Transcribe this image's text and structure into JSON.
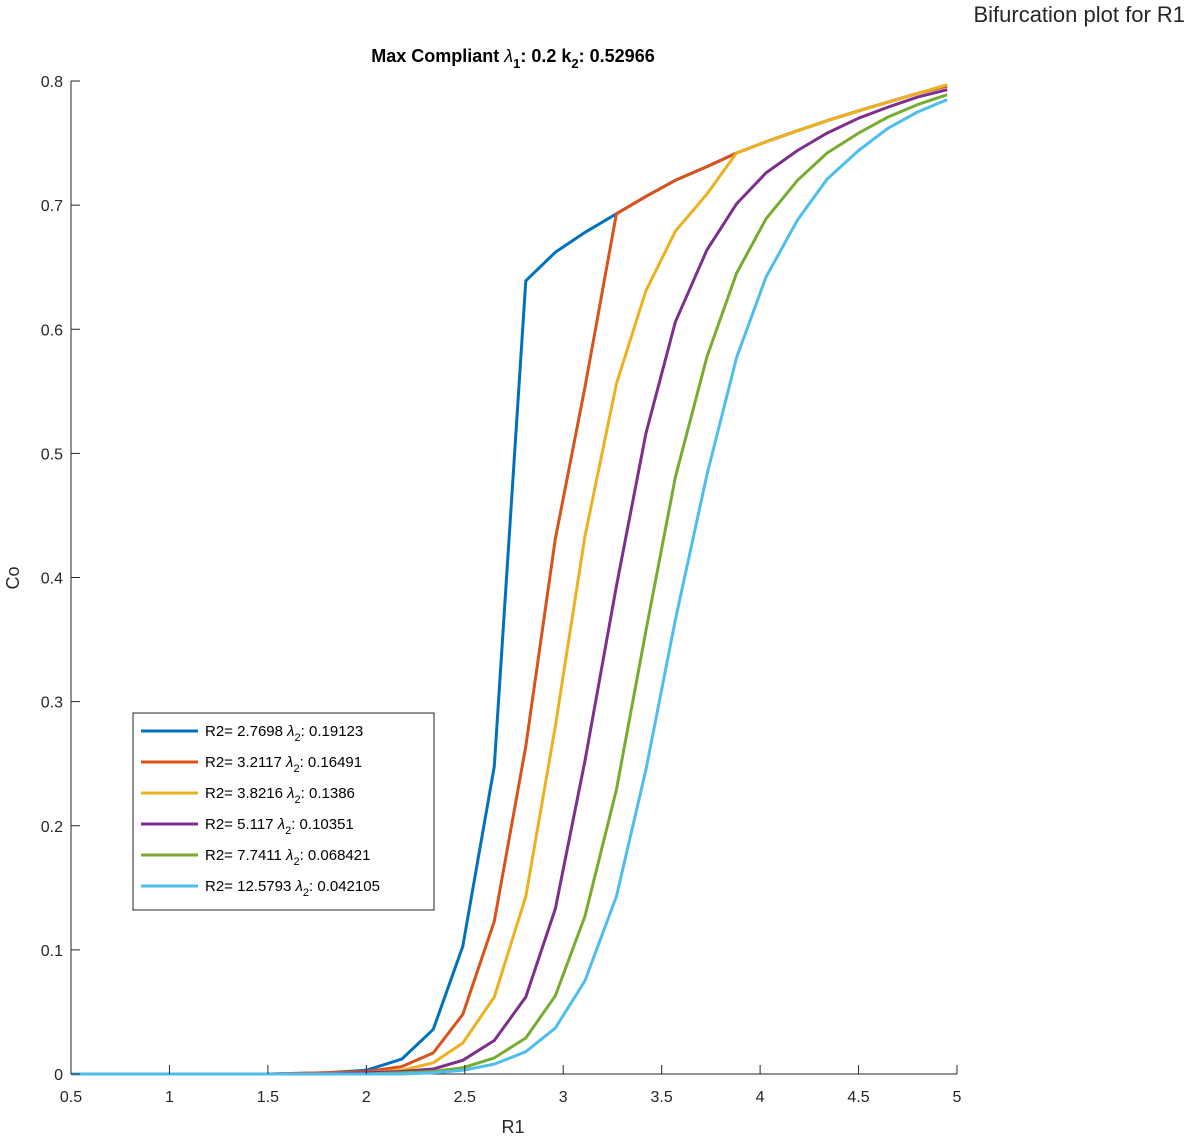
{
  "window_title": "Bifurcation plot for R1",
  "chart_data": {
    "type": "line",
    "title": {
      "prefix": "Max Compliant ",
      "lambda_sub": "1",
      "mid": ": 0.2 k",
      "k_sub": "2",
      "suffix": ": 0.52966"
    },
    "xlabel": "R1",
    "ylabel": "Co",
    "xlim": [
      0.5,
      5
    ],
    "ylim": [
      0,
      0.8
    ],
    "xticks": [
      0.5,
      1,
      1.5,
      2,
      2.5,
      3,
      3.5,
      4,
      4.5,
      5
    ],
    "xtick_labels": [
      "0.5",
      "1",
      "1.5",
      "2",
      "2.5",
      "3",
      "3.5",
      "4",
      "4.5",
      "5"
    ],
    "yticks": [
      0,
      0.1,
      0.2,
      0.3,
      0.4,
      0.5,
      0.6,
      0.7,
      0.8
    ],
    "ytick_labels": [
      "0",
      "0.1",
      "0.2",
      "0.3",
      "0.4",
      "0.5",
      "0.6",
      "0.7",
      "0.8"
    ],
    "grid": false,
    "legend_position": "lower-left",
    "series": [
      {
        "name": "R2= 2.7698 λ2: 0.19123",
        "label_pre": "R2= 2.7698 ",
        "label_sub": "2",
        "label_post": ": 0.19123",
        "color": "#0072BD",
        "points": [
          [
            0.5,
            0
          ],
          [
            1.5,
            0
          ],
          [
            1.8,
            0.001
          ],
          [
            2.0,
            0.003
          ],
          [
            2.18,
            0.012
          ],
          [
            2.34,
            0.036
          ],
          [
            2.49,
            0.103
          ],
          [
            2.65,
            0.248
          ],
          [
            2.81,
            0.639
          ],
          [
            2.96,
            0.662
          ],
          [
            3.11,
            0.678
          ],
          [
            3.27,
            0.693
          ],
          [
            3.42,
            0.707
          ],
          [
            3.57,
            0.72
          ],
          [
            3.73,
            0.731
          ],
          [
            3.88,
            0.742
          ],
          [
            4.03,
            0.751
          ],
          [
            4.19,
            0.76
          ],
          [
            4.34,
            0.768
          ],
          [
            4.5,
            0.776
          ],
          [
            4.65,
            0.783
          ],
          [
            4.8,
            0.79
          ],
          [
            4.95,
            0.796
          ]
        ]
      },
      {
        "name": "R2= 3.2117 λ2: 0.16491",
        "label_pre": "R2= 3.2117 ",
        "label_sub": "2",
        "label_post": ": 0.16491",
        "color": "#D95319",
        "points": [
          [
            0.5,
            0
          ],
          [
            1.5,
            0
          ],
          [
            1.8,
            0.001
          ],
          [
            2.0,
            0.002
          ],
          [
            2.18,
            0.006
          ],
          [
            2.34,
            0.017
          ],
          [
            2.49,
            0.048
          ],
          [
            2.65,
            0.123
          ],
          [
            2.81,
            0.264
          ],
          [
            2.96,
            0.431
          ],
          [
            3.11,
            0.553
          ],
          [
            3.27,
            0.693
          ],
          [
            3.42,
            0.707
          ],
          [
            3.57,
            0.72
          ],
          [
            3.73,
            0.731
          ],
          [
            3.88,
            0.742
          ],
          [
            4.03,
            0.751
          ],
          [
            4.19,
            0.76
          ],
          [
            4.34,
            0.768
          ],
          [
            4.5,
            0.776
          ],
          [
            4.65,
            0.783
          ],
          [
            4.8,
            0.79
          ],
          [
            4.95,
            0.796
          ]
        ]
      },
      {
        "name": "R2= 3.8216 λ2: 0.1386",
        "label_pre": "R2= 3.8216 ",
        "label_sub": "2",
        "label_post": ": 0.1386",
        "color": "#EDB120",
        "points": [
          [
            0.5,
            0
          ],
          [
            1.5,
            0
          ],
          [
            1.8,
            0
          ],
          [
            2.0,
            0.001
          ],
          [
            2.18,
            0.003
          ],
          [
            2.34,
            0.009
          ],
          [
            2.49,
            0.025
          ],
          [
            2.65,
            0.062
          ],
          [
            2.81,
            0.143
          ],
          [
            2.96,
            0.28
          ],
          [
            3.11,
            0.433
          ],
          [
            3.27,
            0.556
          ],
          [
            3.42,
            0.631
          ],
          [
            3.57,
            0.679
          ],
          [
            3.73,
            0.709
          ],
          [
            3.88,
            0.742
          ],
          [
            4.03,
            0.751
          ],
          [
            4.19,
            0.76
          ],
          [
            4.34,
            0.768
          ],
          [
            4.5,
            0.776
          ],
          [
            4.65,
            0.783
          ],
          [
            4.8,
            0.79
          ],
          [
            4.95,
            0.797
          ]
        ]
      },
      {
        "name": "R2= 5.117 λ2: 0.10351",
        "label_pre": "R2= 5.117 ",
        "label_sub": "2",
        "label_post": ": 0.10351",
        "color": "#7E2F8E",
        "points": [
          [
            0.5,
            0
          ],
          [
            1.5,
            0
          ],
          [
            1.8,
            0
          ],
          [
            2.0,
            0.001
          ],
          [
            2.18,
            0.002
          ],
          [
            2.34,
            0.004
          ],
          [
            2.49,
            0.011
          ],
          [
            2.65,
            0.027
          ],
          [
            2.81,
            0.062
          ],
          [
            2.96,
            0.133
          ],
          [
            3.11,
            0.252
          ],
          [
            3.27,
            0.393
          ],
          [
            3.42,
            0.516
          ],
          [
            3.57,
            0.606
          ],
          [
            3.73,
            0.664
          ],
          [
            3.88,
            0.701
          ],
          [
            4.03,
            0.726
          ],
          [
            4.19,
            0.744
          ],
          [
            4.34,
            0.758
          ],
          [
            4.5,
            0.77
          ],
          [
            4.65,
            0.779
          ],
          [
            4.8,
            0.787
          ],
          [
            4.95,
            0.793
          ]
        ]
      },
      {
        "name": "R2= 7.7411 λ2: 0.068421",
        "label_pre": "R2= 7.7411 ",
        "label_sub": "2",
        "label_post": ": 0.068421",
        "color": "#77AC30",
        "points": [
          [
            0.5,
            0
          ],
          [
            1.5,
            0
          ],
          [
            1.8,
            0
          ],
          [
            2.0,
            0
          ],
          [
            2.18,
            0.001
          ],
          [
            2.34,
            0.002
          ],
          [
            2.49,
            0.005
          ],
          [
            2.65,
            0.013
          ],
          [
            2.81,
            0.029
          ],
          [
            2.96,
            0.063
          ],
          [
            3.11,
            0.127
          ],
          [
            3.27,
            0.229
          ],
          [
            3.42,
            0.357
          ],
          [
            3.57,
            0.481
          ],
          [
            3.73,
            0.578
          ],
          [
            3.88,
            0.645
          ],
          [
            4.03,
            0.689
          ],
          [
            4.19,
            0.72
          ],
          [
            4.34,
            0.742
          ],
          [
            4.5,
            0.758
          ],
          [
            4.65,
            0.771
          ],
          [
            4.8,
            0.781
          ],
          [
            4.95,
            0.789
          ]
        ]
      },
      {
        "name": "R2= 12.5793 λ2: 0.042105",
        "label_pre": "R2= 12.5793 ",
        "label_sub": "2",
        "label_post": ": 0.042105",
        "color": "#4DBEEE",
        "points": [
          [
            0.5,
            0
          ],
          [
            1.5,
            0
          ],
          [
            1.8,
            0
          ],
          [
            2.0,
            0
          ],
          [
            2.18,
            0
          ],
          [
            2.34,
            0.001
          ],
          [
            2.49,
            0.003
          ],
          [
            2.65,
            0.008
          ],
          [
            2.81,
            0.018
          ],
          [
            2.96,
            0.037
          ],
          [
            3.11,
            0.075
          ],
          [
            3.27,
            0.143
          ],
          [
            3.42,
            0.245
          ],
          [
            3.57,
            0.366
          ],
          [
            3.73,
            0.483
          ],
          [
            3.88,
            0.577
          ],
          [
            4.03,
            0.642
          ],
          [
            4.19,
            0.688
          ],
          [
            4.34,
            0.721
          ],
          [
            4.5,
            0.744
          ],
          [
            4.65,
            0.762
          ],
          [
            4.8,
            0.775
          ],
          [
            4.95,
            0.785
          ]
        ]
      }
    ]
  }
}
